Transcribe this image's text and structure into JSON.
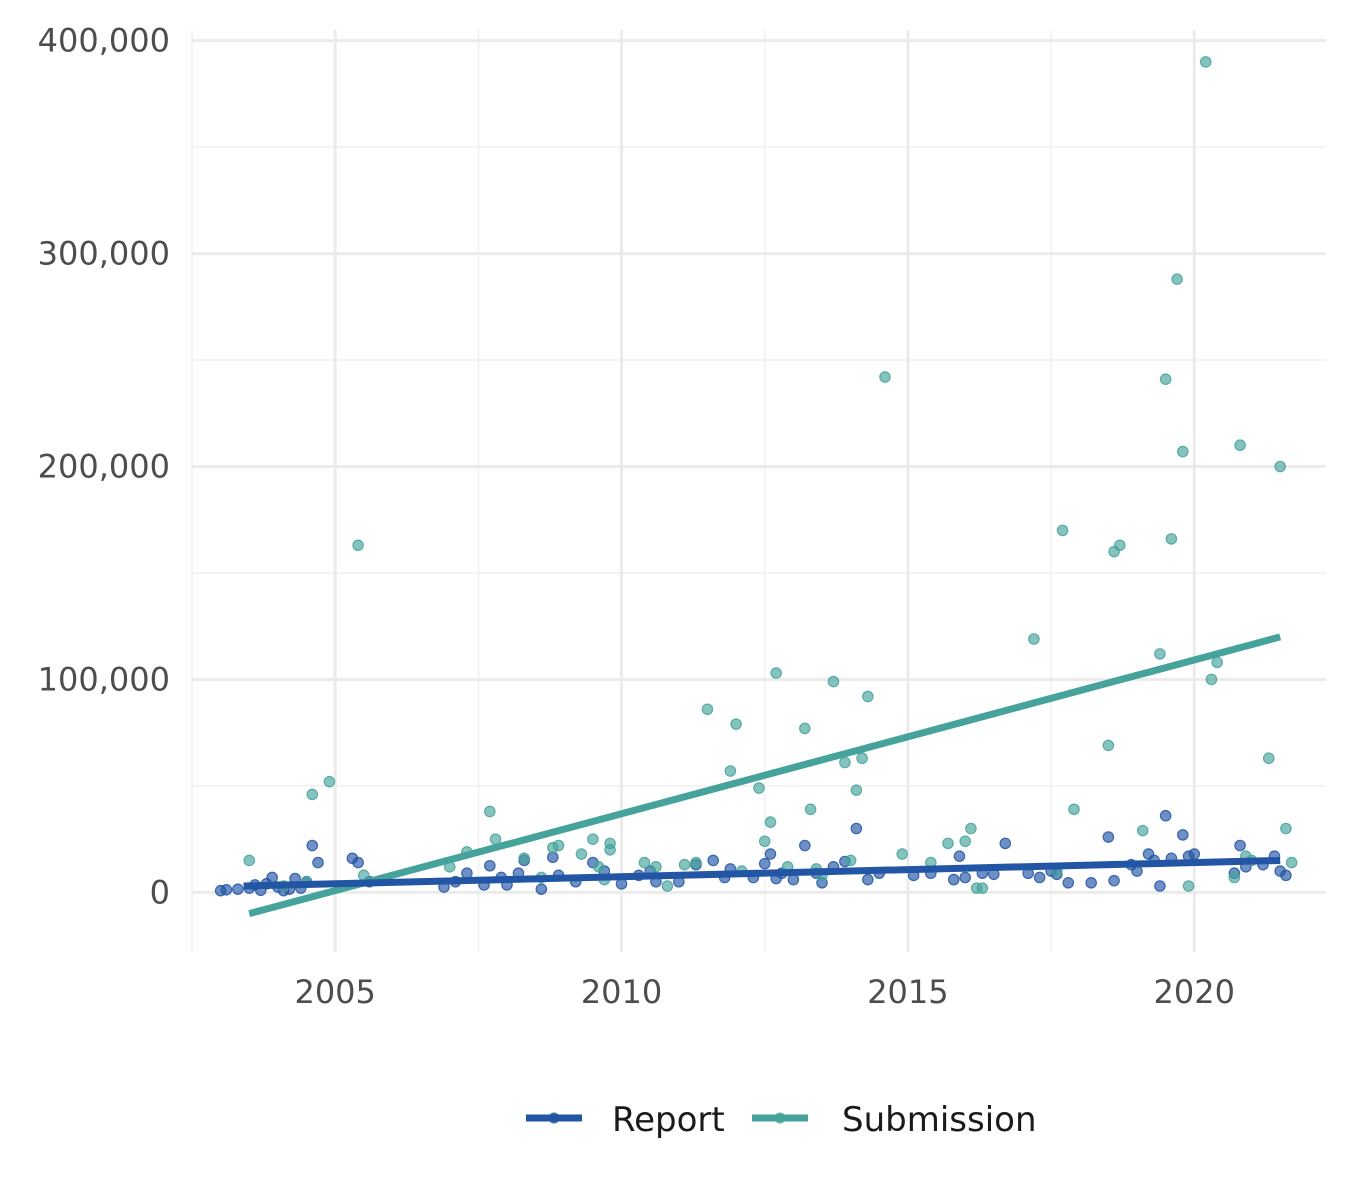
{
  "chart_data": {
    "type": "scatter",
    "title": "",
    "xlabel": "",
    "ylabel": "",
    "xlim": [
      2002.5,
      2022.3
    ],
    "ylim": [
      -28000,
      405000
    ],
    "x_ticks": [
      2005,
      2010,
      2015,
      2020
    ],
    "x_tick_labels": [
      "2005",
      "2010",
      "2015",
      "2020"
    ],
    "y_ticks": [
      0,
      100000,
      200000,
      300000,
      400000
    ],
    "y_tick_labels": [
      "0",
      "100,000",
      "200,000",
      "300,000",
      "400,000"
    ],
    "grid": true,
    "legend_position": "bottom",
    "colors": {
      "Report": "#2255a4",
      "Submission": "#45a39b"
    },
    "series": [
      {
        "name": "Report",
        "trend": {
          "x": [
            2003.4,
            2021.5
          ],
          "y": [
            3000,
            15000
          ]
        },
        "points": [
          [
            2003.0,
            800
          ],
          [
            2003.1,
            1200
          ],
          [
            2003.3,
            1500
          ],
          [
            2003.5,
            2000
          ],
          [
            2003.6,
            3500
          ],
          [
            2003.7,
            1000
          ],
          [
            2003.8,
            4000
          ],
          [
            2003.9,
            7000
          ],
          [
            2004.0,
            2500
          ],
          [
            2004.1,
            800
          ],
          [
            2004.2,
            1500
          ],
          [
            2004.3,
            6500
          ],
          [
            2004.4,
            2000
          ],
          [
            2004.5,
            5000
          ],
          [
            2004.6,
            22000
          ],
          [
            2004.7,
            14000
          ],
          [
            2005.3,
            16000
          ],
          [
            2005.4,
            14000
          ],
          [
            2005.6,
            5000
          ],
          [
            2006.9,
            2500
          ],
          [
            2007.1,
            5000
          ],
          [
            2007.3,
            9000
          ],
          [
            2007.6,
            3500
          ],
          [
            2007.7,
            12500
          ],
          [
            2007.9,
            7000
          ],
          [
            2008.0,
            3500
          ],
          [
            2008.2,
            9000
          ],
          [
            2008.3,
            15000
          ],
          [
            2008.6,
            1500
          ],
          [
            2008.8,
            16500
          ],
          [
            2008.9,
            8000
          ],
          [
            2009.2,
            5000
          ],
          [
            2009.5,
            14000
          ],
          [
            2009.7,
            10000
          ],
          [
            2010.0,
            4000
          ],
          [
            2010.3,
            8000
          ],
          [
            2010.5,
            10000
          ],
          [
            2010.6,
            5000
          ],
          [
            2011.0,
            5000
          ],
          [
            2011.3,
            13000
          ],
          [
            2011.6,
            15000
          ],
          [
            2011.8,
            7000
          ],
          [
            2011.9,
            11000
          ],
          [
            2012.3,
            7000
          ],
          [
            2012.5,
            13500
          ],
          [
            2012.6,
            18000
          ],
          [
            2012.7,
            6500
          ],
          [
            2012.8,
            9000
          ],
          [
            2013.0,
            6000
          ],
          [
            2013.2,
            22000
          ],
          [
            2013.4,
            9000
          ],
          [
            2013.5,
            4500
          ],
          [
            2013.7,
            12000
          ],
          [
            2013.9,
            14500
          ],
          [
            2014.1,
            30000
          ],
          [
            2014.3,
            6000
          ],
          [
            2014.5,
            9000
          ],
          [
            2015.1,
            8000
          ],
          [
            2015.4,
            9000
          ],
          [
            2015.8,
            6000
          ],
          [
            2015.9,
            17000
          ],
          [
            2016.0,
            7000
          ],
          [
            2016.3,
            9000
          ],
          [
            2016.5,
            8500
          ],
          [
            2016.7,
            23000
          ],
          [
            2017.1,
            9000
          ],
          [
            2017.3,
            7000
          ],
          [
            2017.5,
            10000
          ],
          [
            2017.6,
            8500
          ],
          [
            2017.8,
            4500
          ],
          [
            2018.2,
            4500
          ],
          [
            2018.5,
            26000
          ],
          [
            2018.6,
            5500
          ],
          [
            2018.9,
            13000
          ],
          [
            2019.0,
            10000
          ],
          [
            2019.2,
            18000
          ],
          [
            2019.3,
            15000
          ],
          [
            2019.4,
            3000
          ],
          [
            2019.5,
            36000
          ],
          [
            2019.6,
            16000
          ],
          [
            2019.8,
            27000
          ],
          [
            2019.9,
            17000
          ],
          [
            2020.0,
            18000
          ],
          [
            2020.7,
            9000
          ],
          [
            2020.8,
            22000
          ],
          [
            2020.9,
            12000
          ],
          [
            2021.2,
            13000
          ],
          [
            2021.4,
            17000
          ],
          [
            2021.5,
            10000
          ],
          [
            2021.6,
            8000
          ]
        ]
      },
      {
        "name": "Submission",
        "trend": {
          "x": [
            2003.5,
            2021.5
          ],
          "y": [
            -10000,
            120000
          ]
        },
        "points": [
          [
            2003.5,
            15000
          ],
          [
            2004.1,
            3000
          ],
          [
            2004.5,
            5000
          ],
          [
            2004.6,
            46000
          ],
          [
            2004.9,
            52000
          ],
          [
            2005.4,
            163000
          ],
          [
            2005.5,
            8000
          ],
          [
            2007.0,
            12000
          ],
          [
            2007.3,
            19000
          ],
          [
            2007.7,
            38000
          ],
          [
            2007.8,
            25000
          ],
          [
            2008.3,
            16000
          ],
          [
            2008.6,
            7000
          ],
          [
            2008.8,
            21000
          ],
          [
            2008.9,
            22000
          ],
          [
            2009.3,
            18000
          ],
          [
            2009.5,
            25000
          ],
          [
            2009.6,
            12000
          ],
          [
            2009.7,
            6000
          ],
          [
            2009.8,
            23000
          ],
          [
            2009.8,
            20000
          ],
          [
            2010.4,
            14000
          ],
          [
            2010.6,
            12000
          ],
          [
            2010.8,
            3000
          ],
          [
            2011.1,
            13000
          ],
          [
            2011.3,
            14000
          ],
          [
            2011.5,
            86000
          ],
          [
            2011.9,
            57000
          ],
          [
            2012.0,
            79000
          ],
          [
            2012.1,
            10000
          ],
          [
            2012.4,
            49000
          ],
          [
            2012.5,
            24000
          ],
          [
            2012.6,
            33000
          ],
          [
            2012.7,
            103000
          ],
          [
            2012.9,
            12000
          ],
          [
            2013.2,
            77000
          ],
          [
            2013.3,
            39000
          ],
          [
            2013.4,
            11000
          ],
          [
            2013.5,
            8000
          ],
          [
            2013.7,
            99000
          ],
          [
            2013.9,
            61000
          ],
          [
            2014.0,
            15000
          ],
          [
            2014.1,
            48000
          ],
          [
            2014.2,
            63000
          ],
          [
            2014.3,
            92000
          ],
          [
            2014.6,
            242000
          ],
          [
            2014.9,
            18000
          ],
          [
            2015.4,
            14000
          ],
          [
            2015.7,
            23000
          ],
          [
            2016.0,
            24000
          ],
          [
            2016.1,
            30000
          ],
          [
            2016.2,
            2000
          ],
          [
            2016.3,
            2000
          ],
          [
            2017.2,
            119000
          ],
          [
            2017.6,
            10000
          ],
          [
            2017.7,
            170000
          ],
          [
            2017.9,
            39000
          ],
          [
            2018.5,
            69000
          ],
          [
            2018.6,
            160000
          ],
          [
            2018.7,
            163000
          ],
          [
            2019.1,
            29000
          ],
          [
            2019.4,
            112000
          ],
          [
            2019.5,
            241000
          ],
          [
            2019.6,
            166000
          ],
          [
            2019.7,
            288000
          ],
          [
            2019.8,
            207000
          ],
          [
            2019.9,
            3000
          ],
          [
            2020.2,
            390000
          ],
          [
            2020.3,
            100000
          ],
          [
            2020.4,
            108000
          ],
          [
            2020.7,
            7000
          ],
          [
            2020.8,
            210000
          ],
          [
            2020.9,
            17000
          ],
          [
            2021.0,
            15000
          ],
          [
            2021.3,
            63000
          ],
          [
            2021.5,
            200000
          ],
          [
            2021.6,
            30000
          ],
          [
            2021.7,
            14000
          ]
        ]
      }
    ]
  }
}
